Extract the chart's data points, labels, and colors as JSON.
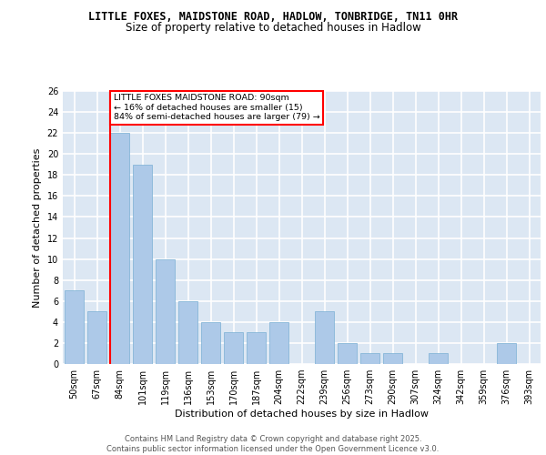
{
  "title1": "LITTLE FOXES, MAIDSTONE ROAD, HADLOW, TONBRIDGE, TN11 0HR",
  "title2": "Size of property relative to detached houses in Hadlow",
  "xlabel": "Distribution of detached houses by size in Hadlow",
  "ylabel": "Number of detached properties",
  "categories": [
    "50sqm",
    "67sqm",
    "84sqm",
    "101sqm",
    "119sqm",
    "136sqm",
    "153sqm",
    "170sqm",
    "187sqm",
    "204sqm",
    "222sqm",
    "239sqm",
    "256sqm",
    "273sqm",
    "290sqm",
    "307sqm",
    "324sqm",
    "342sqm",
    "359sqm",
    "376sqm",
    "393sqm"
  ],
  "values": [
    7,
    5,
    22,
    19,
    10,
    6,
    4,
    3,
    3,
    4,
    0,
    5,
    2,
    1,
    1,
    0,
    1,
    0,
    0,
    2,
    0
  ],
  "bar_color": "#adc9e8",
  "bar_edge_color": "#7aafd4",
  "red_line_index": 2,
  "annotation_text": "LITTLE FOXES MAIDSTONE ROAD: 90sqm\n← 16% of detached houses are smaller (15)\n84% of semi-detached houses are larger (79) →",
  "annotation_box_color": "white",
  "annotation_box_edge_color": "red",
  "red_line_color": "red",
  "ylim": [
    0,
    26
  ],
  "yticks": [
    0,
    2,
    4,
    6,
    8,
    10,
    12,
    14,
    16,
    18,
    20,
    22,
    24,
    26
  ],
  "background_color": "#dce7f3",
  "grid_color": "white",
  "footer_text": "Contains HM Land Registry data © Crown copyright and database right 2025.\nContains public sector information licensed under the Open Government Licence v3.0.",
  "title_fontsize": 8.5,
  "subtitle_fontsize": 8.5,
  "tick_fontsize": 7,
  "ylabel_fontsize": 8,
  "xlabel_fontsize": 8,
  "footer_fontsize": 6.0,
  "annot_fontsize": 6.8
}
